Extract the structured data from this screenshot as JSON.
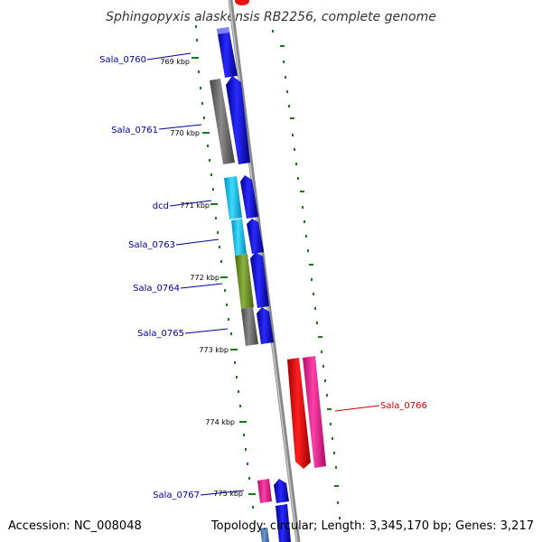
{
  "title": "Sphingopyxis alaskensis RB2256, complete genome",
  "accession": "Accession: NC_008048",
  "summary": "Topology: circular; Length: 3,345,170 bp; Genes: 3,217",
  "gene_labels": {
    "sala_0760": "Sala_0760",
    "sala_0761": "Sala_0761",
    "dcd": "dcd",
    "sala_0763": "Sala_0763",
    "sala_0764": "Sala_0764",
    "sala_0765": "Sala_0765",
    "sala_0766": "Sala_0766",
    "sala_0767": "Sala_0767"
  },
  "kbp_labels": {
    "k769": "769 kbp",
    "k770": "770 kbp",
    "k771": "771 kbp",
    "k772": "772 kbp",
    "k773": "773 kbp",
    "k774": "774 kbp",
    "k775": "775 kbp"
  },
  "colors": {
    "backbone": "#8c8c8c",
    "forward_cds": "#1010e8",
    "reverse_cds_red": "#e81010",
    "pink": "#e8208c",
    "grey": "#6a6a6a",
    "cyan": "#20c8f0",
    "olive": "#7a9a30",
    "steelblue": "#4a7ab0",
    "label_blue": "#000099",
    "label_red": "#cc0000",
    "tick_green": "#1a7a1a"
  }
}
